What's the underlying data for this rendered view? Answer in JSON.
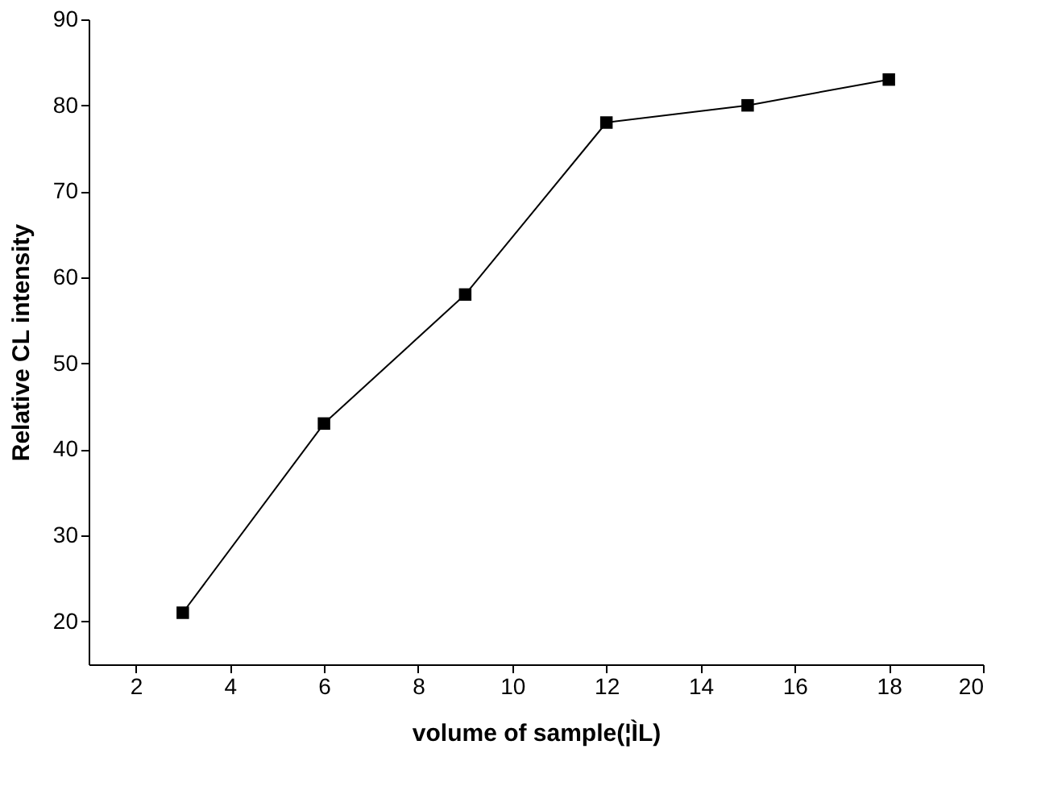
{
  "chart_data": {
    "type": "line",
    "xlabel": "volume of sample(¦ÌL)",
    "ylabel": "Relative CL intensity",
    "x": [
      3,
      6,
      9,
      12,
      15,
      18
    ],
    "series": [
      {
        "color": "#000000",
        "values": [
          21,
          43,
          58,
          78,
          80,
          83
        ]
      }
    ],
    "xlim": [
      1,
      20
    ],
    "xticks": [
      2,
      4,
      6,
      8,
      10,
      12,
      14,
      16,
      18,
      20
    ],
    "ylim": [
      15,
      90
    ],
    "yticks": [
      20,
      30,
      40,
      50,
      60,
      70,
      80,
      90
    ],
    "marker": "square",
    "line_style": "solid",
    "grid": false
  }
}
